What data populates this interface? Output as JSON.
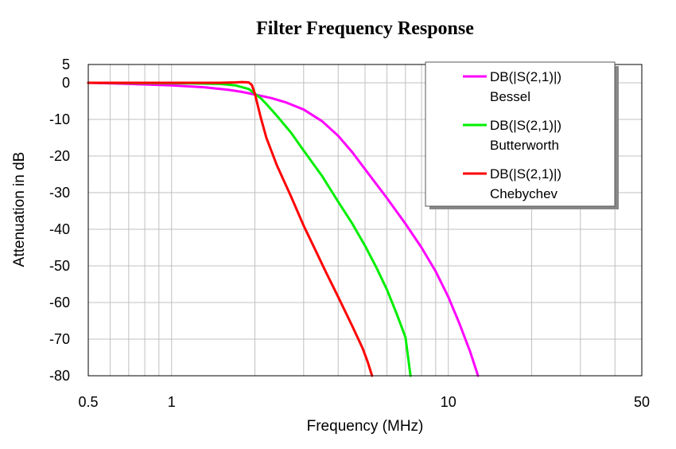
{
  "chart_data": {
    "type": "line",
    "title": "Filter Frequency Response",
    "xlabel": "Frequency (MHz)",
    "ylabel": "Attenuation in dB",
    "x_scale": "log",
    "xlim": [
      0.5,
      50
    ],
    "ylim": [
      -80,
      5
    ],
    "x_ticks": [
      0.5,
      1,
      10,
      50
    ],
    "x_tick_labels": [
      "0.5",
      "1",
      "10",
      "50"
    ],
    "y_ticks": [
      5,
      0,
      -10,
      -20,
      -30,
      -40,
      -50,
      -60,
      -70,
      -80
    ],
    "y_tick_labels": [
      "5",
      "0",
      "-10",
      "-20",
      "-30",
      "-40",
      "-50",
      "-60",
      "-70",
      "-80"
    ],
    "grid": true,
    "legend_position": "top-right",
    "series": [
      {
        "name_line1": "DB(|S(2,1)|)",
        "name_line2": "Bessel",
        "color": "#ff00ff",
        "x": [
          0.5,
          0.7,
          1.0,
          1.3,
          1.6,
          1.8,
          2.0,
          2.3,
          2.6,
          3.0,
          3.5,
          4.0,
          4.5,
          5.0,
          6.0,
          7.0,
          8.0,
          9.0,
          10.0,
          11.0,
          12.0,
          12.8
        ],
        "y": [
          0,
          -0.3,
          -0.7,
          -1.2,
          -1.9,
          -2.5,
          -3.2,
          -4.2,
          -5.4,
          -7.3,
          -10.5,
          -14.5,
          -19.0,
          -23.6,
          -31.5,
          -38.5,
          -45.0,
          -51.5,
          -58.5,
          -66.0,
          -73.5,
          -80.0
        ]
      },
      {
        "name_line1": "DB(|S(2,1)|)",
        "name_line2": "Butterworth",
        "color": "#00ee00",
        "x": [
          0.5,
          1.0,
          1.5,
          1.7,
          1.9,
          2.0,
          2.1,
          2.2,
          2.4,
          2.7,
          3.0,
          3.5,
          4.0,
          4.5,
          5.0,
          5.5,
          6.0,
          6.5,
          7.0,
          7.3
        ],
        "y": [
          0,
          -0.1,
          -0.3,
          -0.7,
          -1.7,
          -3.0,
          -4.2,
          -5.8,
          -9.0,
          -13.6,
          -18.5,
          -25.5,
          -32.5,
          -38.5,
          -44.5,
          -50.5,
          -56.5,
          -63.0,
          -69.5,
          -80.0
        ]
      },
      {
        "name_line1": "DB(|S(2,1)|)",
        "name_line2": "Chebychev",
        "color": "#ff0000",
        "x": [
          0.5,
          1.0,
          1.5,
          1.7,
          1.8,
          1.9,
          1.95,
          2.0,
          2.1,
          2.2,
          2.4,
          2.7,
          3.0,
          3.3,
          3.6,
          4.0,
          4.5,
          4.9,
          5.1,
          5.3
        ],
        "y": [
          0,
          0,
          0,
          0.1,
          0.2,
          0.1,
          -0.6,
          -3.0,
          -9.5,
          -15.0,
          -22.5,
          -31.0,
          -39.0,
          -45.5,
          -51.5,
          -58.5,
          -66.5,
          -72.5,
          -76.0,
          -80.0
        ]
      }
    ]
  }
}
